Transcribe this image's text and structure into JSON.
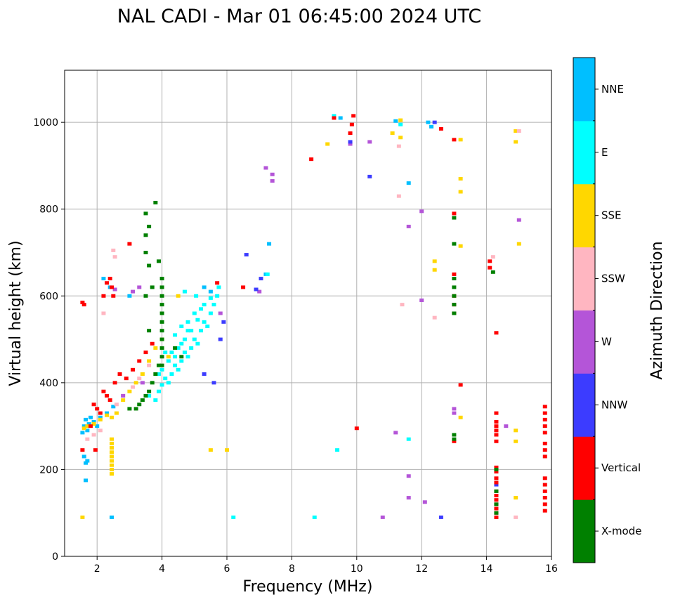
{
  "chart_data": {
    "type": "scatter",
    "title": "NAL CADI - Mar 01 06:45:00 2024 UTC",
    "xlabel": "Frequency (MHz)",
    "ylabel": "Virtual height (km)",
    "xlim": [
      1,
      16
    ],
    "ylim": [
      0,
      1120
    ],
    "xticks": [
      2,
      4,
      6,
      8,
      10,
      12,
      14,
      16
    ],
    "yticks": [
      0,
      200,
      400,
      600,
      800,
      1000
    ],
    "grid": true,
    "colorbar": {
      "label": "Azimuth Direction",
      "position": "right",
      "categories": [
        {
          "name": "X-mode",
          "color": "#008000"
        },
        {
          "name": "Vertical",
          "color": "#ff0000"
        },
        {
          "name": "NNW",
          "color": "#3c3cff"
        },
        {
          "name": "W",
          "color": "#b455d8"
        },
        {
          "name": "SSW",
          "color": "#ffb6c1"
        },
        {
          "name": "SSE",
          "color": "#ffd700"
        },
        {
          "name": "E",
          "color": "#00ffff"
        },
        {
          "name": "NNE",
          "color": "#00bfff"
        }
      ]
    },
    "series": [
      {
        "name": "NNE",
        "points": [
          [
            1.6,
            300
          ],
          [
            1.65,
            315
          ],
          [
            1.7,
            290
          ],
          [
            1.75,
            305
          ],
          [
            1.8,
            320
          ],
          [
            1.6,
            230
          ],
          [
            1.65,
            215
          ],
          [
            1.7,
            220
          ],
          [
            1.65,
            175
          ],
          [
            2.45,
            90
          ],
          [
            1.55,
            285
          ],
          [
            1.9,
            310
          ],
          [
            2.0,
            300
          ],
          [
            2.1,
            320
          ],
          [
            2.3,
            330
          ],
          [
            2.5,
            345
          ],
          [
            2.2,
            640
          ],
          [
            2.4,
            620
          ],
          [
            3.0,
            600
          ],
          [
            5.3,
            620
          ],
          [
            5.5,
            610
          ],
          [
            7.3,
            720
          ],
          [
            7.2,
            650
          ],
          [
            12.2,
            1000
          ],
          [
            9.5,
            1010
          ],
          [
            11.2,
            1003
          ],
          [
            12.3,
            990
          ],
          [
            11.6,
            860
          ]
        ]
      },
      {
        "name": "E",
        "points": [
          [
            3.6,
            370
          ],
          [
            3.8,
            360
          ],
          [
            3.9,
            380
          ],
          [
            4.0,
            395
          ],
          [
            4.1,
            410
          ],
          [
            4.2,
            400
          ],
          [
            4.3,
            420
          ],
          [
            4.4,
            440
          ],
          [
            4.5,
            430
          ],
          [
            4.6,
            450
          ],
          [
            4.7,
            470
          ],
          [
            4.8,
            460
          ],
          [
            4.9,
            480
          ],
          [
            5.0,
            500
          ],
          [
            5.1,
            490
          ],
          [
            5.2,
            520
          ],
          [
            5.3,
            540
          ],
          [
            5.4,
            530
          ],
          [
            5.5,
            560
          ],
          [
            5.6,
            580
          ],
          [
            5.7,
            600
          ],
          [
            5.75,
            620
          ],
          [
            4.4,
            510
          ],
          [
            4.6,
            530
          ],
          [
            4.8,
            540
          ],
          [
            5.0,
            560
          ],
          [
            5.2,
            570
          ],
          [
            4.2,
            450
          ],
          [
            4.5,
            480
          ],
          [
            4.7,
            500
          ],
          [
            4.9,
            520
          ],
          [
            5.1,
            545
          ],
          [
            5.3,
            580
          ],
          [
            5.5,
            595
          ],
          [
            4.3,
            470
          ],
          [
            4.6,
            490
          ],
          [
            4.0,
            430
          ],
          [
            3.9,
            420
          ],
          [
            4.1,
            470
          ],
          [
            4.4,
            460
          ],
          [
            4.8,
            520
          ],
          [
            5.05,
            600
          ],
          [
            4.7,
            610
          ],
          [
            7.25,
            650
          ],
          [
            9.4,
            245
          ],
          [
            8.7,
            90
          ],
          [
            6.2,
            90
          ],
          [
            11.6,
            270
          ],
          [
            11.35,
            995
          ],
          [
            9.3,
            1015
          ]
        ]
      },
      {
        "name": "SSE",
        "points": [
          [
            1.6,
            295
          ],
          [
            1.7,
            300
          ],
          [
            1.9,
            305
          ],
          [
            2.1,
            315
          ],
          [
            2.3,
            325
          ],
          [
            2.45,
            320
          ],
          [
            2.6,
            330
          ],
          [
            2.8,
            360
          ],
          [
            3.0,
            380
          ],
          [
            3.2,
            400
          ],
          [
            3.4,
            420
          ],
          [
            3.6,
            450
          ],
          [
            3.8,
            480
          ],
          [
            4.0,
            500
          ],
          [
            2.45,
            270
          ],
          [
            2.45,
            260
          ],
          [
            2.45,
            250
          ],
          [
            2.45,
            240
          ],
          [
            2.45,
            230
          ],
          [
            2.45,
            220
          ],
          [
            2.45,
            210
          ],
          [
            2.45,
            200
          ],
          [
            2.45,
            190
          ],
          [
            5.5,
            245
          ],
          [
            6.0,
            245
          ],
          [
            9.1,
            950
          ],
          [
            11.35,
            1005
          ],
          [
            11.1,
            975
          ],
          [
            11.35,
            965
          ],
          [
            13.2,
            960
          ],
          [
            13.2,
            870
          ],
          [
            13.2,
            840
          ],
          [
            13.2,
            715
          ],
          [
            13.2,
            320
          ],
          [
            14.9,
            980
          ],
          [
            14.9,
            955
          ],
          [
            15.0,
            720
          ],
          [
            14.9,
            290
          ],
          [
            14.9,
            265
          ],
          [
            14.9,
            135
          ],
          [
            12.4,
            680
          ],
          [
            12.4,
            660
          ],
          [
            1.55,
            90
          ],
          [
            4.2,
            460
          ],
          [
            4.5,
            600
          ]
        ]
      },
      {
        "name": "SSW",
        "points": [
          [
            2.2,
            560
          ],
          [
            2.5,
            705
          ],
          [
            2.55,
            690
          ],
          [
            1.7,
            270
          ],
          [
            1.9,
            280
          ],
          [
            2.1,
            290
          ],
          [
            2.6,
            350
          ],
          [
            2.8,
            370
          ],
          [
            3.1,
            390
          ],
          [
            3.3,
            410
          ],
          [
            3.6,
            440
          ],
          [
            11.3,
            945
          ],
          [
            11.3,
            830
          ],
          [
            11.4,
            580
          ],
          [
            12.4,
            550
          ],
          [
            14.2,
            690
          ],
          [
            14.9,
            90
          ],
          [
            15.0,
            980
          ]
        ]
      },
      {
        "name": "W",
        "points": [
          [
            2.55,
            615
          ],
          [
            3.1,
            610
          ],
          [
            3.3,
            620
          ],
          [
            5.8,
            560
          ],
          [
            7.0,
            610
          ],
          [
            7.4,
            880
          ],
          [
            7.4,
            865
          ],
          [
            7.2,
            895
          ],
          [
            9.8,
            950
          ],
          [
            10.4,
            955
          ],
          [
            11.6,
            760
          ],
          [
            12.0,
            795
          ],
          [
            12.0,
            590
          ],
          [
            12.1,
            125
          ],
          [
            11.2,
            285
          ],
          [
            11.6,
            185
          ],
          [
            11.6,
            135
          ],
          [
            13.0,
            340
          ],
          [
            13.0,
            330
          ],
          [
            15.0,
            775
          ],
          [
            14.6,
            300
          ],
          [
            10.8,
            90
          ],
          [
            2.8,
            370
          ],
          [
            3.4,
            400
          ]
        ]
      },
      {
        "name": "NNW",
        "points": [
          [
            6.6,
            695
          ],
          [
            6.9,
            615
          ],
          [
            7.05,
            640
          ],
          [
            5.8,
            500
          ],
          [
            5.6,
            400
          ],
          [
            10.4,
            875
          ],
          [
            12.4,
            1000
          ],
          [
            12.6,
            90
          ],
          [
            14.3,
            165
          ],
          [
            5.3,
            420
          ],
          [
            5.9,
            540
          ],
          [
            9.8,
            955
          ]
        ]
      },
      {
        "name": "Vertical",
        "points": [
          [
            1.55,
            245
          ],
          [
            1.55,
            585
          ],
          [
            1.6,
            580
          ],
          [
            1.8,
            300
          ],
          [
            1.9,
            350
          ],
          [
            2.0,
            340
          ],
          [
            2.1,
            330
          ],
          [
            2.2,
            380
          ],
          [
            2.3,
            370
          ],
          [
            2.4,
            360
          ],
          [
            2.55,
            400
          ],
          [
            2.7,
            420
          ],
          [
            2.9,
            410
          ],
          [
            3.1,
            430
          ],
          [
            3.3,
            450
          ],
          [
            3.5,
            470
          ],
          [
            3.7,
            490
          ],
          [
            2.2,
            600
          ],
          [
            2.3,
            630
          ],
          [
            2.4,
            640
          ],
          [
            2.45,
            620
          ],
          [
            2.5,
            600
          ],
          [
            3.0,
            720
          ],
          [
            8.6,
            915
          ],
          [
            9.3,
            1010
          ],
          [
            9.8,
            975
          ],
          [
            9.85,
            995
          ],
          [
            9.9,
            1015
          ],
          [
            10.0,
            295
          ],
          [
            12.6,
            985
          ],
          [
            13.2,
            395
          ],
          [
            5.7,
            630
          ],
          [
            6.5,
            620
          ],
          [
            1.95,
            245
          ],
          [
            14.1,
            680
          ],
          [
            14.1,
            665
          ],
          [
            14.3,
            515
          ],
          [
            14.3,
            330
          ],
          [
            14.3,
            310
          ],
          [
            14.3,
            300
          ],
          [
            14.3,
            290
          ],
          [
            14.3,
            280
          ],
          [
            14.3,
            265
          ],
          [
            14.3,
            205
          ],
          [
            14.3,
            195
          ],
          [
            14.3,
            180
          ],
          [
            14.3,
            170
          ],
          [
            14.3,
            150
          ],
          [
            14.3,
            140
          ],
          [
            14.3,
            130
          ],
          [
            14.3,
            120
          ],
          [
            14.3,
            110
          ],
          [
            14.3,
            100
          ],
          [
            14.3,
            90
          ],
          [
            15.8,
            345
          ],
          [
            15.8,
            330
          ],
          [
            15.8,
            315
          ],
          [
            15.8,
            300
          ],
          [
            15.8,
            285
          ],
          [
            15.8,
            260
          ],
          [
            15.8,
            245
          ],
          [
            15.8,
            230
          ],
          [
            15.8,
            180
          ],
          [
            15.8,
            165
          ],
          [
            15.8,
            150
          ],
          [
            15.8,
            135
          ],
          [
            15.8,
            120
          ],
          [
            15.8,
            105
          ],
          [
            13.0,
            790
          ],
          [
            13.0,
            650
          ],
          [
            13.0,
            600
          ],
          [
            13.0,
            580
          ],
          [
            13.0,
            560
          ],
          [
            13.0,
            265
          ],
          [
            13.0,
            960
          ]
        ]
      },
      {
        "name": "X-mode",
        "points": [
          [
            3.8,
            815
          ],
          [
            3.5,
            790
          ],
          [
            3.6,
            760
          ],
          [
            3.5,
            740
          ],
          [
            3.5,
            700
          ],
          [
            3.6,
            670
          ],
          [
            3.9,
            680
          ],
          [
            4.0,
            640
          ],
          [
            4.0,
            620
          ],
          [
            4.0,
            600
          ],
          [
            4.0,
            580
          ],
          [
            4.0,
            560
          ],
          [
            4.0,
            540
          ],
          [
            4.0,
            520
          ],
          [
            4.0,
            500
          ],
          [
            4.0,
            480
          ],
          [
            4.0,
            460
          ],
          [
            4.0,
            440
          ],
          [
            3.9,
            440
          ],
          [
            3.8,
            420
          ],
          [
            3.7,
            400
          ],
          [
            3.6,
            380
          ],
          [
            3.5,
            370
          ],
          [
            3.4,
            360
          ],
          [
            3.3,
            350
          ],
          [
            3.2,
            340
          ],
          [
            3.0,
            340
          ],
          [
            3.5,
            600
          ],
          [
            3.7,
            620
          ],
          [
            3.6,
            520
          ],
          [
            4.4,
            480
          ],
          [
            4.6,
            460
          ],
          [
            13.0,
            640
          ],
          [
            13.0,
            620
          ],
          [
            13.0,
            600
          ],
          [
            13.0,
            580
          ],
          [
            13.0,
            560
          ],
          [
            13.0,
            720
          ],
          [
            13.0,
            780
          ],
          [
            13.0,
            280
          ],
          [
            13.0,
            270
          ],
          [
            14.3,
            200
          ],
          [
            14.3,
            150
          ],
          [
            14.3,
            120
          ],
          [
            14.3,
            100
          ],
          [
            14.2,
            655
          ]
        ]
      }
    ]
  }
}
